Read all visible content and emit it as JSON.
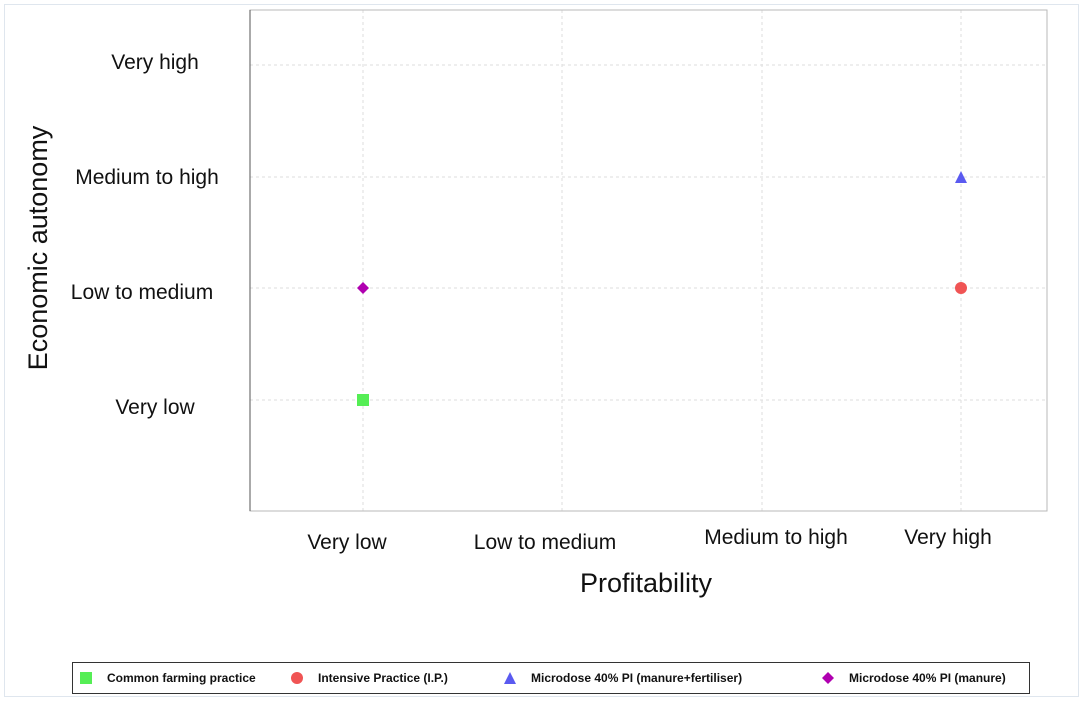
{
  "chart_data": {
    "type": "scatter",
    "xlabel": "Profitability",
    "ylabel": "Economic autonomy",
    "x_categories": [
      "Very low",
      "Low to medium",
      "Medium to high",
      "Very high"
    ],
    "y_categories": [
      "Very low",
      "Low to medium",
      "Medium to high",
      "Very high"
    ],
    "grid": true,
    "legend_position": "bottom",
    "series": [
      {
        "name": "Common farming practice",
        "marker": "square",
        "color": "#55ee55",
        "x": "Very low",
        "y": "Very low"
      },
      {
        "name": "Intensive Practice (I.P.)",
        "marker": "circle",
        "color": "#f05454",
        "x": "Very high",
        "y": "Low to medium"
      },
      {
        "name": "Microdose 40% PI (manure+fertiliser)",
        "marker": "triangle",
        "color": "#5a5af0",
        "x": "Very high",
        "y": "Medium to high"
      },
      {
        "name": "Microdose 40% PI (manure)",
        "marker": "diamond",
        "color": "#b000b0",
        "x": "Very low",
        "y": "Low to medium"
      }
    ]
  }
}
